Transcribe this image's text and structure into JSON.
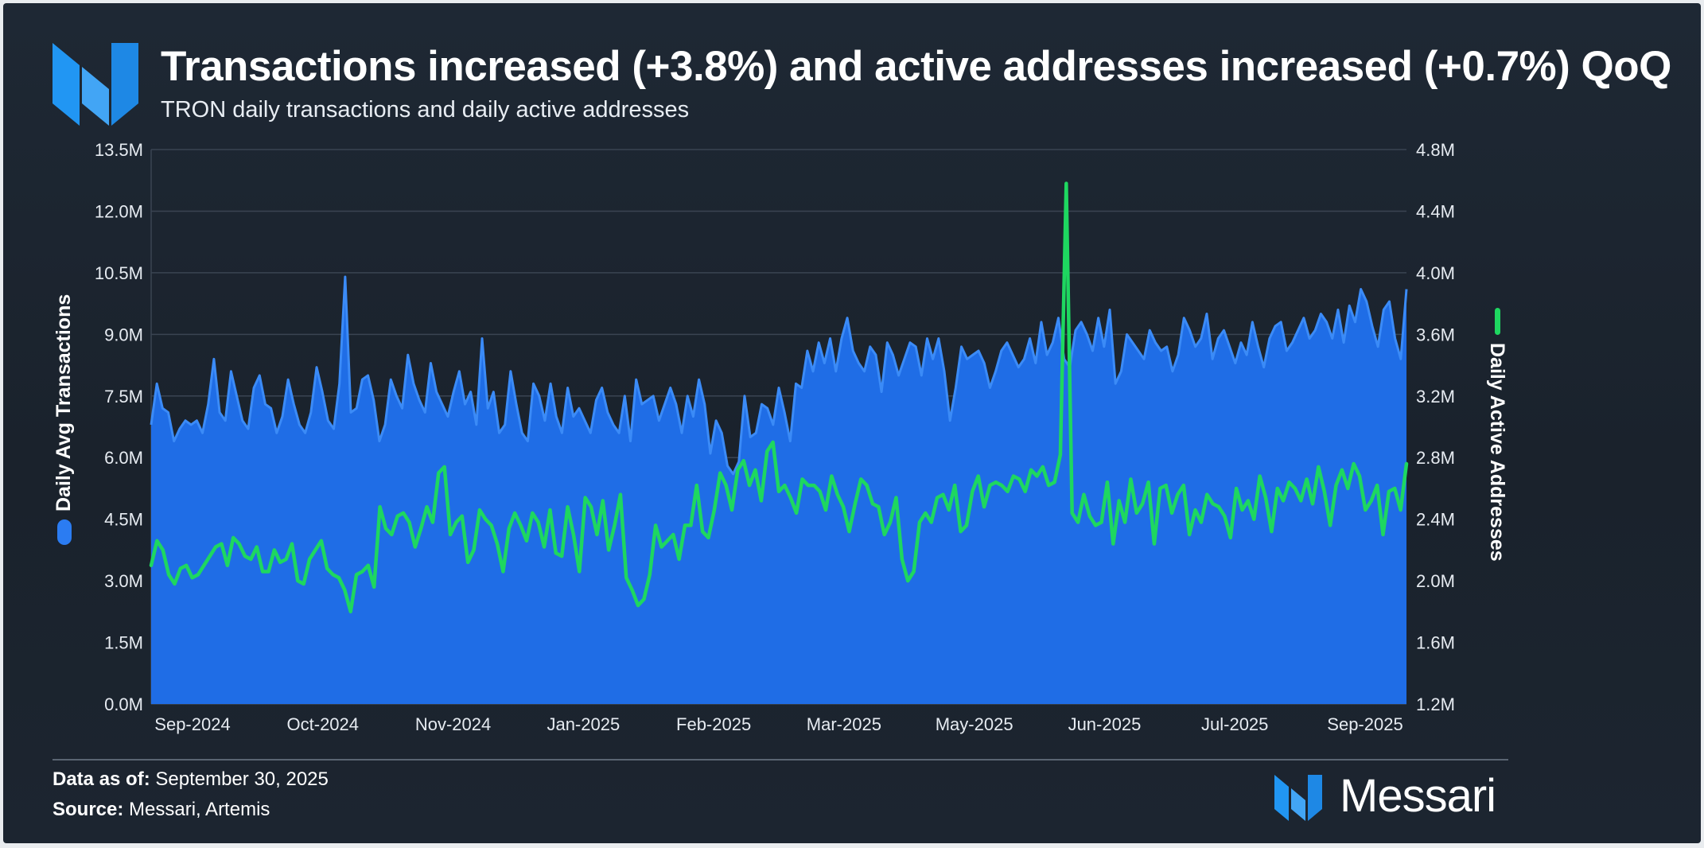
{
  "header": {
    "title": "Transactions increased (+3.8%) and active addresses increased (+0.7%) QoQ",
    "subtitle": "TRON daily transactions and daily active addresses"
  },
  "footer": {
    "data_as_of_label": "Data as of:",
    "data_as_of_value": "September 30, 2025",
    "source_label": "Source:",
    "source_value": "Messari, Artemis",
    "brand": "Messari"
  },
  "colors": {
    "transactions_fill": "#1f6de6",
    "transactions_line": "#3b8bf7",
    "addresses_line": "#1ed760",
    "grid": "#3a4452",
    "background": "#1e2834"
  },
  "chart_data": {
    "type": "area+line",
    "title": "Transactions increased (+3.8%) and active addresses increased (+0.7%) QoQ",
    "subtitle": "TRON daily transactions and daily active addresses",
    "x_ticks": [
      "Sep-2024",
      "Oct-2024",
      "Nov-2024",
      "Jan-2025",
      "Feb-2025",
      "Mar-2025",
      "May-2025",
      "Jun-2025",
      "Jul-2025",
      "Sep-2025"
    ],
    "y_left": {
      "label": "Daily Avg Transactions",
      "ticks": [
        "0.0M",
        "1.5M",
        "3.0M",
        "4.5M",
        "6.0M",
        "7.5M",
        "9.0M",
        "10.5M",
        "12.0M",
        "13.5M"
      ],
      "ylim": [
        0,
        13.5
      ],
      "unit": "M"
    },
    "y_right": {
      "label": "Daily Active Addresses",
      "ticks": [
        "1.2M",
        "1.6M",
        "2.0M",
        "2.4M",
        "2.8M",
        "3.2M",
        "3.6M",
        "4.0M",
        "4.4M",
        "4.8M"
      ],
      "ylim": [
        1.2,
        4.8
      ],
      "unit": "M"
    },
    "series": [
      {
        "name": "Daily Avg Transactions",
        "axis": "left",
        "style": "area",
        "values": [
          6.8,
          7.8,
          7.2,
          7.1,
          6.4,
          6.7,
          6.9,
          6.8,
          6.9,
          6.6,
          7.3,
          8.4,
          7.1,
          6.9,
          8.1,
          7.5,
          6.9,
          6.7,
          7.7,
          8.0,
          7.3,
          7.2,
          6.6,
          7.0,
          7.9,
          7.3,
          6.8,
          6.6,
          7.1,
          8.2,
          7.6,
          6.9,
          6.7,
          7.8,
          10.4,
          7.1,
          7.2,
          7.9,
          8.0,
          7.4,
          6.4,
          6.8,
          7.9,
          7.5,
          7.2,
          8.5,
          7.8,
          7.4,
          7.1,
          8.3,
          7.6,
          7.3,
          7.0,
          7.6,
          8.1,
          7.3,
          7.6,
          6.8,
          8.9,
          7.2,
          7.6,
          6.6,
          6.8,
          8.1,
          7.3,
          6.6,
          6.4,
          7.8,
          7.5,
          6.9,
          7.8,
          7.0,
          6.6,
          7.7,
          7.0,
          7.2,
          6.9,
          6.6,
          7.4,
          7.7,
          7.1,
          6.8,
          6.6,
          7.5,
          6.4,
          7.9,
          7.3,
          7.4,
          7.5,
          6.9,
          7.3,
          7.7,
          7.3,
          6.6,
          7.5,
          7.0,
          7.9,
          7.3,
          6.1,
          6.9,
          6.6,
          5.8,
          5.6,
          5.9,
          7.5,
          6.5,
          6.6,
          7.3,
          7.2,
          6.8,
          7.7,
          7.1,
          6.4,
          7.8,
          7.7,
          8.6,
          8.1,
          8.8,
          8.3,
          8.9,
          8.1,
          8.9,
          9.4,
          8.6,
          8.3,
          8.1,
          8.7,
          8.5,
          7.6,
          8.8,
          8.5,
          8.0,
          8.4,
          8.8,
          8.7,
          8.0,
          8.9,
          8.4,
          8.9,
          8.1,
          6.9,
          7.7,
          8.7,
          8.4,
          8.5,
          8.6,
          8.3,
          7.7,
          8.1,
          8.6,
          8.8,
          8.5,
          8.2,
          8.4,
          8.9,
          8.3,
          9.3,
          8.5,
          8.8,
          9.4,
          8.4,
          8.2,
          9.1,
          9.3,
          9.0,
          8.6,
          9.4,
          8.7,
          9.6,
          7.8,
          8.1,
          9.0,
          8.8,
          8.6,
          8.4,
          9.1,
          8.8,
          8.6,
          8.7,
          8.1,
          8.5,
          9.4,
          9.1,
          8.7,
          8.9,
          9.5,
          8.4,
          8.9,
          9.1,
          8.7,
          8.3,
          8.8,
          8.5,
          9.3,
          8.7,
          8.2,
          8.9,
          9.2,
          9.3,
          8.6,
          8.8,
          9.1,
          9.4,
          8.9,
          9.1,
          9.5,
          9.3,
          8.9,
          9.6,
          8.8,
          9.7,
          9.3,
          10.1,
          9.8,
          9.2,
          8.7,
          9.6,
          9.8,
          8.9,
          8.4,
          10.1
        ]
      },
      {
        "name": "Daily Active Addresses",
        "axis": "right",
        "style": "line",
        "values": [
          2.1,
          2.26,
          2.2,
          2.04,
          1.98,
          2.08,
          2.1,
          2.02,
          2.04,
          2.1,
          2.16,
          2.22,
          2.24,
          2.1,
          2.28,
          2.24,
          2.16,
          2.14,
          2.22,
          2.06,
          2.06,
          2.2,
          2.12,
          2.14,
          2.24,
          2.0,
          1.98,
          2.14,
          2.2,
          2.26,
          2.08,
          2.04,
          2.02,
          1.94,
          1.8,
          2.04,
          2.06,
          2.1,
          1.96,
          2.48,
          2.34,
          2.3,
          2.42,
          2.44,
          2.38,
          2.22,
          2.34,
          2.48,
          2.38,
          2.7,
          2.74,
          2.3,
          2.38,
          2.42,
          2.12,
          2.2,
          2.46,
          2.4,
          2.36,
          2.24,
          2.06,
          2.34,
          2.44,
          2.36,
          2.26,
          2.44,
          2.38,
          2.22,
          2.46,
          2.18,
          2.16,
          2.48,
          2.3,
          2.06,
          2.54,
          2.48,
          2.3,
          2.52,
          2.2,
          2.36,
          2.56,
          2.02,
          1.94,
          1.84,
          1.88,
          2.04,
          2.36,
          2.22,
          2.26,
          2.3,
          2.14,
          2.36,
          2.36,
          2.62,
          2.32,
          2.28,
          2.46,
          2.7,
          2.62,
          2.46,
          2.72,
          2.78,
          2.62,
          2.72,
          2.52,
          2.84,
          2.9,
          2.58,
          2.62,
          2.54,
          2.44,
          2.66,
          2.62,
          2.62,
          2.58,
          2.46,
          2.68,
          2.56,
          2.48,
          2.32,
          2.5,
          2.66,
          2.62,
          2.5,
          2.48,
          2.3,
          2.38,
          2.54,
          2.14,
          2.0,
          2.06,
          2.38,
          2.44,
          2.38,
          2.54,
          2.56,
          2.46,
          2.62,
          2.32,
          2.36,
          2.58,
          2.68,
          2.48,
          2.62,
          2.64,
          2.62,
          2.58,
          2.68,
          2.66,
          2.58,
          2.72,
          2.68,
          2.74,
          2.62,
          2.64,
          2.82,
          4.58,
          2.44,
          2.38,
          2.56,
          2.42,
          2.36,
          2.38,
          2.64,
          2.24,
          2.52,
          2.38,
          2.66,
          2.44,
          2.5,
          2.64,
          2.24,
          2.6,
          2.62,
          2.44,
          2.56,
          2.62,
          2.3,
          2.46,
          2.38,
          2.56,
          2.5,
          2.48,
          2.42,
          2.28,
          2.6,
          2.46,
          2.52,
          2.4,
          2.68,
          2.54,
          2.32,
          2.6,
          2.52,
          2.64,
          2.6,
          2.52,
          2.66,
          2.5,
          2.74,
          2.58,
          2.36,
          2.62,
          2.72,
          2.6,
          2.76,
          2.68,
          2.46,
          2.52,
          2.62,
          2.3,
          2.58,
          2.6,
          2.46,
          2.76
        ]
      }
    ],
    "legend": "rotated axis titles with color markers",
    "grid": true
  }
}
